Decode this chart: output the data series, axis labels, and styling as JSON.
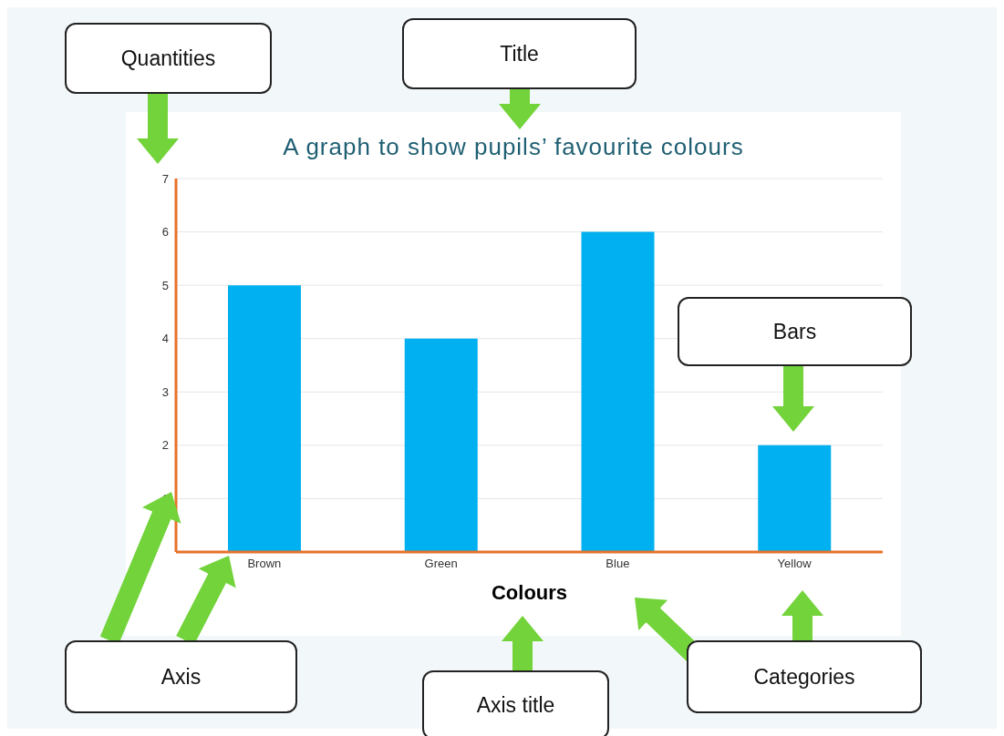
{
  "chart_data": {
    "type": "bar",
    "title": "A graph to show pupils’ favourite colours",
    "xlabel": "Colours",
    "categories": [
      "Brown",
      "Green",
      "Blue",
      "Yellow"
    ],
    "values": [
      5,
      4,
      6,
      2
    ],
    "color": "#00b0f0",
    "ylim": [
      0,
      7
    ],
    "yticks": [
      1,
      2,
      3,
      4,
      5,
      6,
      7
    ],
    "grid": "y",
    "annotations": [
      "Quantities",
      "Title",
      "Bars",
      "Axis",
      "Axis title",
      "Categories"
    ]
  }
}
